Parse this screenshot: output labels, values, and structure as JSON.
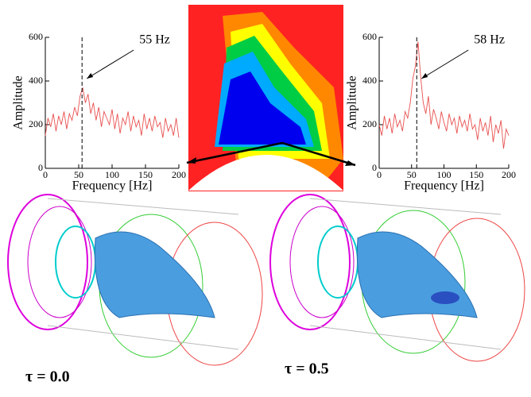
{
  "chart_data": [
    {
      "type": "line",
      "y_label": "Amplitude",
      "x_label": "Frequency [Hz]",
      "annotation": "55 Hz",
      "marker_x": 55,
      "xlim": [
        0,
        200
      ],
      "ylim": [
        0,
        600
      ],
      "xticks": [
        0,
        50,
        100,
        150,
        200
      ],
      "yticks": [
        0,
        200,
        400,
        600
      ],
      "x": [
        0,
        4,
        8,
        12,
        16,
        20,
        24,
        28,
        32,
        36,
        40,
        44,
        48,
        52,
        56,
        60,
        64,
        68,
        72,
        76,
        80,
        84,
        88,
        92,
        96,
        100,
        104,
        108,
        112,
        116,
        120,
        124,
        128,
        132,
        136,
        140,
        144,
        148,
        152,
        156,
        160,
        164,
        168,
        172,
        176,
        180,
        184,
        188,
        192,
        196,
        200
      ],
      "series": [
        {
          "color": "#e8504f",
          "values": [
            150,
            230,
            190,
            250,
            170,
            240,
            200,
            260,
            180,
            250,
            220,
            280,
            240,
            330,
            370,
            300,
            340,
            250,
            300,
            220,
            280,
            190,
            260,
            230,
            200,
            270,
            180,
            250,
            160,
            230,
            200,
            260,
            170,
            240,
            190,
            220,
            150,
            250,
            180,
            230,
            170,
            240,
            190,
            210,
            140,
            230,
            170,
            200,
            150,
            230,
            140
          ]
        }
      ]
    },
    {
      "type": "line",
      "y_label": "Amplitude",
      "x_label": "Frequency [Hz]",
      "annotation": "58 Hz",
      "marker_x": 58,
      "xlim": [
        0,
        200
      ],
      "ylim": [
        0,
        600
      ],
      "xticks": [
        0,
        50,
        100,
        150,
        200
      ],
      "yticks": [
        0,
        200,
        400,
        600
      ],
      "x": [
        0,
        4,
        8,
        12,
        16,
        20,
        24,
        28,
        32,
        36,
        40,
        44,
        48,
        52,
        56,
        60,
        64,
        68,
        72,
        76,
        80,
        84,
        88,
        92,
        96,
        100,
        104,
        108,
        112,
        116,
        120,
        124,
        128,
        132,
        136,
        140,
        144,
        148,
        152,
        156,
        160,
        164,
        168,
        172,
        176,
        180,
        184,
        188,
        192,
        196,
        200
      ],
      "series": [
        {
          "color": "#e8504f",
          "values": [
            200,
            150,
            240,
            180,
            230,
            160,
            250,
            190,
            220,
            170,
            260,
            230,
            300,
            410,
            470,
            580,
            420,
            300,
            250,
            330,
            200,
            270,
            230,
            180,
            260,
            210,
            170,
            250,
            200,
            230,
            160,
            240,
            190,
            220,
            170,
            250,
            180,
            200,
            130,
            230,
            170,
            210,
            150,
            240,
            120,
            200,
            160,
            220,
            90,
            180,
            150
          ]
        }
      ]
    }
  ],
  "captions": [
    "τ = 0.0",
    "τ = 0.5"
  ]
}
